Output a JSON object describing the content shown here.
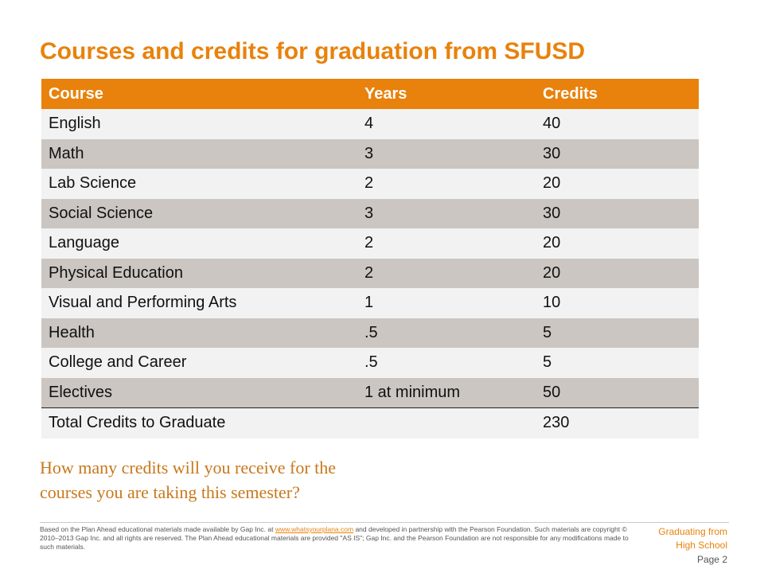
{
  "title": "Courses and credits for graduation from SFUSD",
  "table": {
    "headers": [
      "Course",
      "Years",
      "Credits"
    ],
    "rows": [
      [
        "English",
        "4",
        "40"
      ],
      [
        "Math",
        "3",
        "30"
      ],
      [
        "Lab Science",
        "2",
        "20"
      ],
      [
        "Social Science",
        "3",
        "30"
      ],
      [
        "Language",
        "2",
        "20"
      ],
      [
        "Physical Education",
        "2",
        "20"
      ],
      [
        "Visual and Performing Arts",
        "1",
        "10"
      ],
      [
        "Health",
        ".5",
        "5"
      ],
      [
        "College and Career",
        ".5",
        "5"
      ],
      [
        "Electives",
        "1 at minimum",
        "50"
      ]
    ],
    "total": [
      "Total Credits to Graduate",
      "",
      "230"
    ]
  },
  "question": {
    "line1": "How many credits will you receive for the",
    "line2": "courses you are taking this semester?"
  },
  "footer": {
    "prefix": "Based on the Plan  Ahead educational materials made  available  by Gap Inc.  at ",
    "link": "www.whatsyourplana.com",
    "suffix": " and developed  in partnership with the Pearson Foundation.  Such materials are copyright © 2010–2013 Gap Inc. and all rights are reserved. The Plan  Ahead educational materials  are provided \"AS IS\"; Gap Inc. and the Pearson Foundation are not responsible for any modifications made  to such materials."
  },
  "brand": {
    "line1": "Graduating from",
    "line2": "High School"
  },
  "page": "Page 2"
}
